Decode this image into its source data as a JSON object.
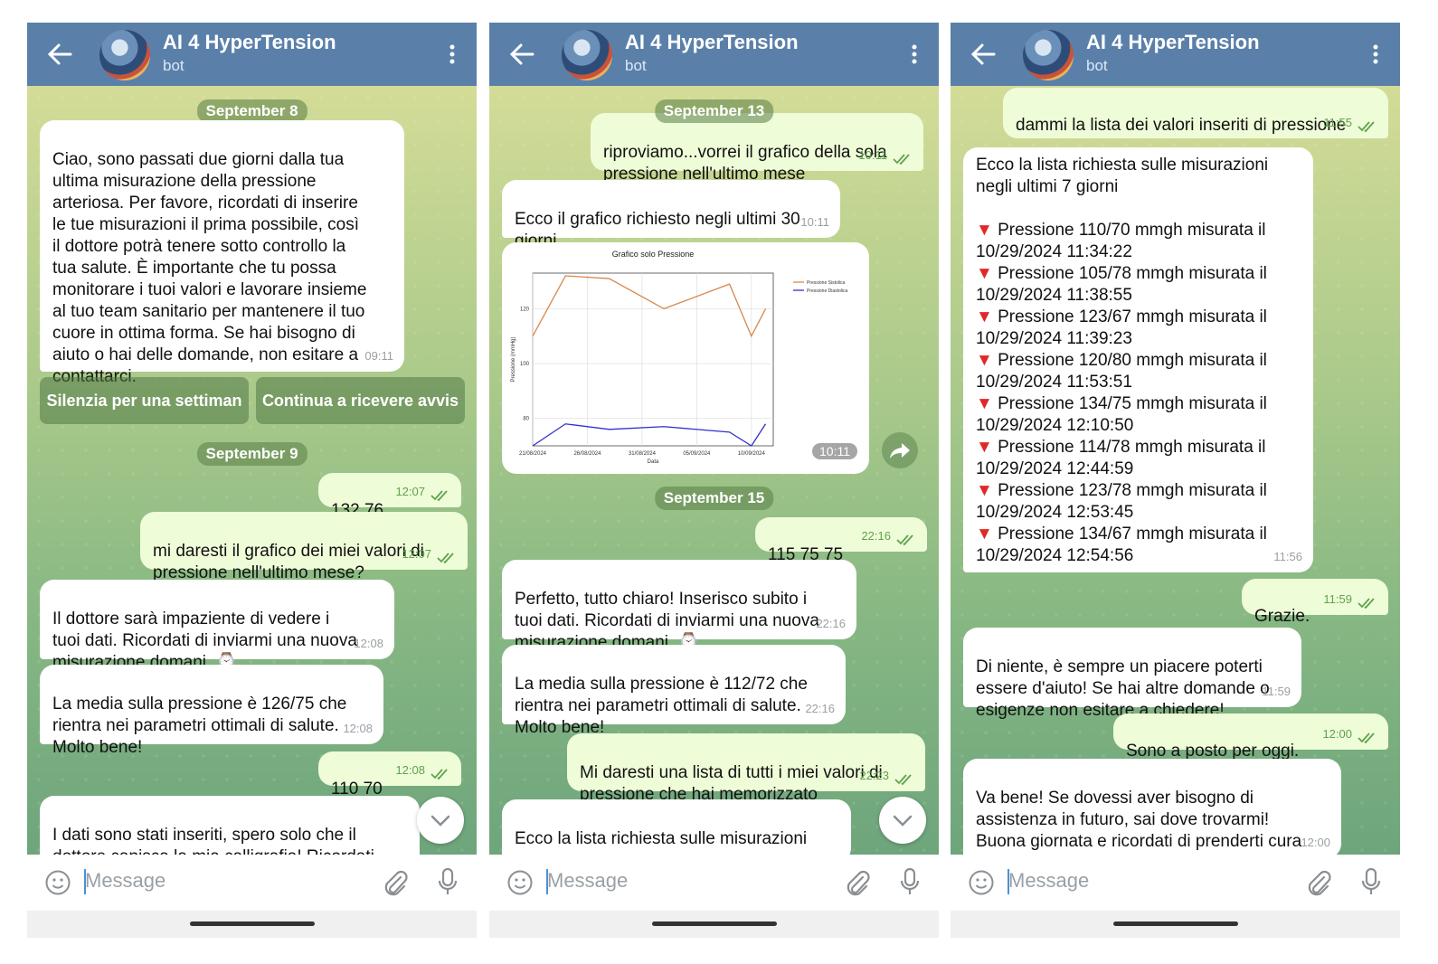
{
  "app": {
    "title": "AI 4 HyperTension",
    "subtitle": "bot",
    "input_placeholder": "Message"
  },
  "screen1": {
    "date1": "September 8",
    "msg1": "Ciao, sono passati due giorni dalla tua\nultima misurazione della pressione\narteriosa. Per favore, ricordati di inserire\nle tue misurazioni il prima possibile, così\nil dottore potrà tenere sotto controllo la\ntua salute. È importante che tu possa\nmonitorare i tuoi valori e lavorare insieme\nal tuo team sanitario per mantenere il tuo\ncuore in ottima forma. Se hai bisogno di\naiuto o hai delle domande, non esitare a\ncontattarci.",
    "msg1_time": "09:11",
    "btn1": "Silenzia per una settiman",
    "btn2": "Continua a ricevere avvis",
    "date2": "September 9",
    "msg2": "132 76",
    "msg2_time": "12:07",
    "msg3": "mi daresti il grafico dei miei valori di\npressione nell'ultimo mese?",
    "msg3_time": "12:07",
    "msg4": "Il dottore sarà impaziente di vedere i\ntuoi dati. Ricordati di inviarmi una nuova\nmisurazione domani. ⌚",
    "msg4_time": "12:08",
    "msg5": "La media sulla pressione è 126/75 che\nrientra nei parametri ottimali di salute.\nMolto bene!",
    "msg5_time": "12:08",
    "msg6": "110 70",
    "msg6_time": "12:08",
    "msg7": "I dati sono stati inseriti, spero solo che il\ndottore capisca la mia calligrafia! Ricordati\ndi inviarmi una nuova misurazione domani."
  },
  "screen2": {
    "date1": "September 13",
    "msg1": "riproviamo...vorrei il grafico della sola\npressione nell'ultimo mese",
    "msg1_time": "10:11",
    "msg2": "Ecco il grafico richiesto negli ultimi 30\ngiorni",
    "msg2_time": "10:11",
    "chart_time": "10:11",
    "date2": "September 15",
    "msg3": "115 75 75",
    "msg3_time": "22:16",
    "msg4": "Perfetto, tutto chiaro! Inserisco subito i\ntuoi dati. Ricordati di inviarmi una nuova\nmisurazione domani. ⌚",
    "msg4_time": "22:16",
    "msg5": "La media sulla pressione è 112/72 che\nrientra nei parametri ottimali di salute.\nMolto bene!",
    "msg5_time": "22:16",
    "msg6": "Mi daresti una lista di tutti i miei valori di\npressione che hai memorizzato",
    "msg6_time": "22:23",
    "msg7": "Ecco la lista richiesta sulle misurazioni"
  },
  "screen3": {
    "msg1": "dammi la lista dei valori inseriti di pressione",
    "msg1_time": "11:55",
    "msg2_intro": "Ecco la lista richiesta sulle misurazioni\nnegli ultimi 7 giorni",
    "msg2_items": [
      {
        "text": "Pressione 110/70 mmgh misurata il",
        "date": "10/29/2024 11:34:22"
      },
      {
        "text": "Pressione 105/78 mmgh misurata il",
        "date": "10/29/2024 11:38:55"
      },
      {
        "text": "Pressione 123/67 mmgh misurata il",
        "date": "10/29/2024 11:39:23"
      },
      {
        "text": "Pressione 120/80 mmgh misurata il",
        "date": "10/29/2024 11:53:51"
      },
      {
        "text": "Pressione 134/75 mmgh misurata il",
        "date": "10/29/2024 12:10:50"
      },
      {
        "text": "Pressione 114/78 mmgh misurata il",
        "date": "10/29/2024 12:44:59"
      },
      {
        "text": "Pressione 123/78 mmgh misurata il",
        "date": "10/29/2024 12:53:45"
      },
      {
        "text": "Pressione 134/67 mmgh misurata il",
        "date": "10/29/2024 12:54:56"
      }
    ],
    "msg2_time": "11:56",
    "msg3": "Grazie.",
    "msg3_time": "11:59",
    "msg4": "Di niente, è sempre un piacere poterti\nessere d'aiuto! Se hai altre domande o\nesigenze non esitare a chiedere!",
    "msg4_time": "11:59",
    "msg5": "Sono a posto per oggi.",
    "msg5_time": "12:00",
    "msg6": "Va bene! Se dovessi aver bisogno di\nassistenza in futuro, sai dove trovarmi!\nBuona giornata e ricordati di prenderti cura\ndella tua salute!",
    "msg6_time": "12:00"
  },
  "chart_data": {
    "type": "line",
    "title": "Grafico solo Pressione",
    "xlabel": "Data",
    "ylabel": "Pressione (mmHg)",
    "x_ticks": [
      "21/08/2024",
      "26/08/2024",
      "31/08/2024",
      "05/09/2024",
      "10/09/2024"
    ],
    "y_ticks": [
      80,
      100,
      120
    ],
    "x": [
      0,
      3,
      7,
      12,
      18,
      20,
      21.3
    ],
    "series": [
      {
        "name": "Pressione Sistolica",
        "color": "#d9884a",
        "values": [
          110,
          132,
          131,
          120,
          129,
          110,
          120
        ]
      },
      {
        "name": "Pressione Diastolica",
        "color": "#3030d0",
        "values": [
          70,
          78,
          76,
          77,
          75,
          70,
          78
        ]
      }
    ],
    "ylim": [
      70,
      133
    ],
    "grid": true,
    "legend": "top-right"
  }
}
